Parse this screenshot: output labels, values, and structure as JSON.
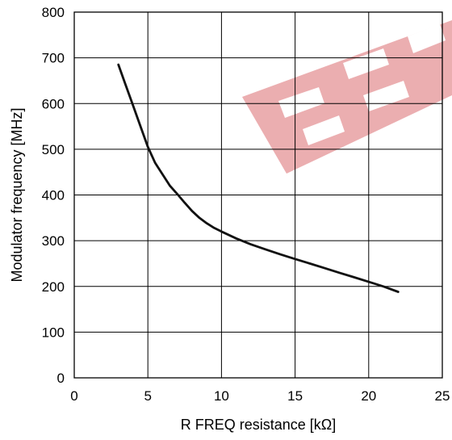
{
  "chart_data": {
    "type": "line",
    "title": "",
    "xlabel": "R FREQ resistance [kΩ]",
    "ylabel": "Modulator frequency [MHz]",
    "xlim": [
      0,
      25
    ],
    "ylim": [
      0,
      800
    ],
    "xticks": [
      0,
      5,
      10,
      15,
      20,
      25
    ],
    "yticks": [
      0,
      100,
      200,
      300,
      400,
      500,
      600,
      700,
      800
    ],
    "grid": true,
    "series": [
      {
        "x": [
          3,
          3.5,
          4,
          4.5,
          5,
          5.5,
          6,
          6.5,
          7,
          7.5,
          8,
          8.5,
          9,
          9.5,
          10,
          11,
          12,
          13,
          14,
          15,
          16,
          17,
          18,
          19,
          20,
          21,
          22
        ],
        "y": [
          685,
          640,
          595,
          550,
          505,
          470,
          445,
          420,
          402,
          383,
          365,
          350,
          338,
          328,
          320,
          305,
          292,
          281,
          270,
          260,
          250,
          240,
          230,
          220,
          210,
          200,
          188
        ]
      }
    ]
  },
  "colors": {
    "line": "#111111",
    "grid": "#000000",
    "watermark": "#e8a0a3"
  }
}
